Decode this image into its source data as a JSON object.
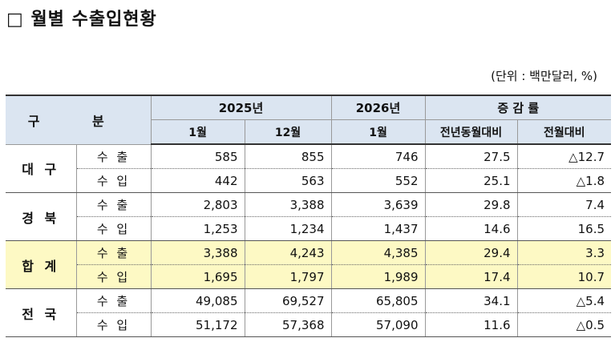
{
  "title": "□ 월별 수출입현황",
  "unit": "(단위 : 백만달러, %)",
  "header": {
    "group": "구 분",
    "years": [
      "2025년",
      "2026년",
      "증 감 률"
    ],
    "columns": [
      "1월",
      "12월",
      "1월",
      "전년동월대비",
      "전월대비"
    ]
  },
  "groups": [
    {
      "name": "대 구",
      "rows": [
        {
          "item": "수 출",
          "values": [
            "585",
            "855",
            "746",
            "27.5",
            "△12.7"
          ]
        },
        {
          "item": "수 입",
          "values": [
            "442",
            "563",
            "552",
            "25.1",
            "△1.8"
          ]
        }
      ]
    },
    {
      "name": "경 북",
      "rows": [
        {
          "item": "수 출",
          "values": [
            "2,803",
            "3,388",
            "3,639",
            "29.8",
            "7.4"
          ]
        },
        {
          "item": "수 입",
          "values": [
            "1,253",
            "1,234",
            "1,437",
            "14.6",
            "16.5"
          ]
        }
      ]
    },
    {
      "name": "합 계",
      "rows": [
        {
          "item": "수 출",
          "values": [
            "3,388",
            "4,243",
            "4,385",
            "29.4",
            "3.3"
          ]
        },
        {
          "item": "수 입",
          "values": [
            "1,695",
            "1,797",
            "1,989",
            "17.4",
            "10.7"
          ]
        }
      ]
    },
    {
      "name": "전 국",
      "rows": [
        {
          "item": "수 출",
          "values": [
            "49,085",
            "69,527",
            "65,805",
            "34.1",
            "△5.4"
          ]
        },
        {
          "item": "수 입",
          "values": [
            "51,172",
            "57,368",
            "57,090",
            "11.6",
            "△0.5"
          ]
        }
      ]
    }
  ]
}
